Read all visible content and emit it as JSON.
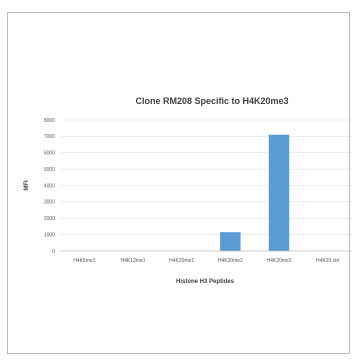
{
  "chart_data": {
    "type": "bar",
    "title": "Clone RM208 Specific to H4K20me3",
    "xlabel": "Histone H3 Peptides",
    "ylabel": "MFI",
    "categories": [
      "H4K5me1",
      "H4K12me1",
      "H4K20me1",
      "H4K20me2",
      "H4K20me3",
      "H4K20 ctrl"
    ],
    "values": [
      0,
      0,
      0,
      1150,
      7100,
      0
    ],
    "ylim": [
      0,
      8000
    ],
    "yticks": [
      0,
      1000,
      2000,
      3000,
      4000,
      5000,
      6000,
      7000,
      8000
    ],
    "grid": true,
    "bar_color": "#5b9bd5"
  }
}
